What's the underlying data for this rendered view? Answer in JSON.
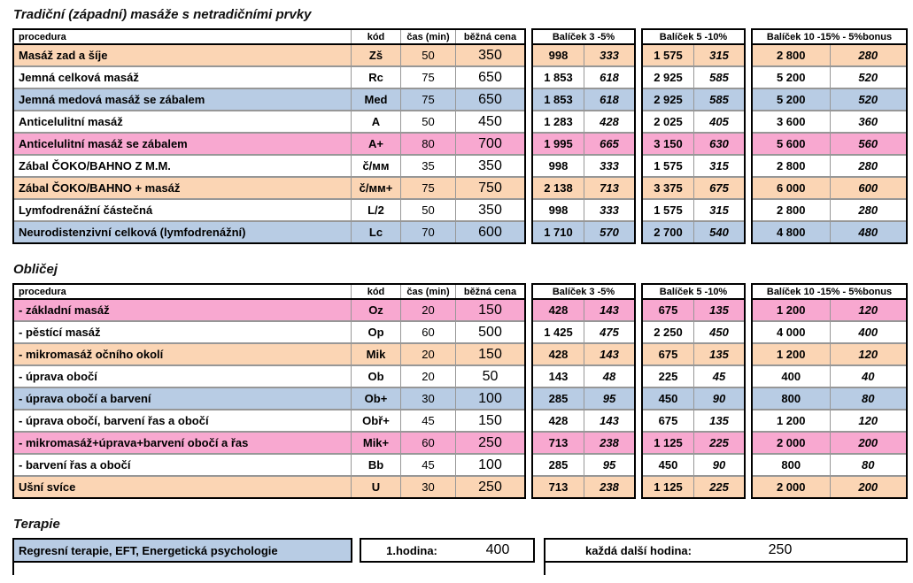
{
  "colors": {
    "row_peach": "#FBD5B4",
    "row_pink": "#F8A8D0",
    "row_blue": "#B8CCE4",
    "row_white": "#FFFFFF",
    "border_outer": "#000000",
    "border_inner": "#979797"
  },
  "columns": {
    "procedura": "procedura",
    "kod": "kód",
    "cas": "čas (min)",
    "cena": "běžná cena",
    "b3": "Balíček 3  -5%",
    "b5": "Balíček 5  -10%",
    "b10": "Balíček 10  -15% - 5%bonus"
  },
  "sections": [
    {
      "title": "Tradiční (západní) masáže s netradičními prvky",
      "rows": [
        {
          "procedura": "Masáž zad a šíje",
          "kod": "Zš",
          "cas": "50",
          "cena": "350",
          "b3": [
            "998",
            "333"
          ],
          "b5": [
            "1 575",
            "315"
          ],
          "b10": [
            "2 800",
            "280"
          ],
          "color": "peach"
        },
        {
          "procedura": "Jemná celková masáž",
          "kod": "Rc",
          "cas": "75",
          "cena": "650",
          "b3": [
            "1 853",
            "618"
          ],
          "b5": [
            "2 925",
            "585"
          ],
          "b10": [
            "5 200",
            "520"
          ],
          "color": "white"
        },
        {
          "procedura": "Jemná medová masáž se zábalem",
          "kod": "Med",
          "cas": "75",
          "cena": "650",
          "b3": [
            "1 853",
            "618"
          ],
          "b5": [
            "2 925",
            "585"
          ],
          "b10": [
            "5 200",
            "520"
          ],
          "color": "blue"
        },
        {
          "procedura": "Anticelulitní masáž",
          "kod": "A",
          "cas": "50",
          "cena": "450",
          "b3": [
            "1 283",
            "428"
          ],
          "b5": [
            "2 025",
            "405"
          ],
          "b10": [
            "3 600",
            "360"
          ],
          "color": "white"
        },
        {
          "procedura": "Anticelulitní masáž se zábalem",
          "kod": "A+",
          "cas": "80",
          "cena": "700",
          "b3": [
            "1 995",
            "665"
          ],
          "b5": [
            "3 150",
            "630"
          ],
          "b10": [
            "5 600",
            "560"
          ],
          "color": "pink"
        },
        {
          "procedura": "Zábal ČOKO/BAHNO Z M.M.",
          "kod": "č/мм",
          "cas": "35",
          "cena": "350",
          "b3": [
            "998",
            "333"
          ],
          "b5": [
            "1 575",
            "315"
          ],
          "b10": [
            "2 800",
            "280"
          ],
          "color": "white"
        },
        {
          "procedura": "Zábal ČOKO/BAHNO + masáž",
          "kod": "č/мм+",
          "cas": "75",
          "cena": "750",
          "b3": [
            "2 138",
            "713"
          ],
          "b5": [
            "3 375",
            "675"
          ],
          "b10": [
            "6 000",
            "600"
          ],
          "color": "peach"
        },
        {
          "procedura": "Lymfodrenážní částečná",
          "kod": "L/2",
          "cas": "50",
          "cena": "350",
          "b3": [
            "998",
            "333"
          ],
          "b5": [
            "1 575",
            "315"
          ],
          "b10": [
            "2 800",
            "280"
          ],
          "color": "white"
        },
        {
          "procedura": "Neurodistenzivní celková (lymfodrenážní)",
          "kod": "Lc",
          "cas": "70",
          "cena": "600",
          "b3": [
            "1 710",
            "570"
          ],
          "b5": [
            "2 700",
            "540"
          ],
          "b10": [
            "4 800",
            "480"
          ],
          "color": "blue"
        }
      ]
    },
    {
      "title": "Obličej",
      "rows": [
        {
          "procedura": "- základní masáž",
          "kod": "Oz",
          "cas": "20",
          "cena": "150",
          "b3": [
            "428",
            "143"
          ],
          "b5": [
            "675",
            "135"
          ],
          "b10": [
            "1 200",
            "120"
          ],
          "color": "pink"
        },
        {
          "procedura": "- pěstící masáž",
          "kod": "Op",
          "cas": "60",
          "cena": "500",
          "b3": [
            "1 425",
            "475"
          ],
          "b5": [
            "2 250",
            "450"
          ],
          "b10": [
            "4 000",
            "400"
          ],
          "color": "white"
        },
        {
          "procedura": "- mikromasáž očního okolí",
          "kod": "Mik",
          "cas": "20",
          "cena": "150",
          "b3": [
            "428",
            "143"
          ],
          "b5": [
            "675",
            "135"
          ],
          "b10": [
            "1 200",
            "120"
          ],
          "color": "peach"
        },
        {
          "procedura": "- úprava obočí",
          "kod": "Ob",
          "cas": "20",
          "cena": "50",
          "b3": [
            "143",
            "48"
          ],
          "b5": [
            "225",
            "45"
          ],
          "b10": [
            "400",
            "40"
          ],
          "color": "white"
        },
        {
          "procedura": "- úprava obočí a barvení",
          "kod": "Ob+",
          "cas": "30",
          "cena": "100",
          "b3": [
            "285",
            "95"
          ],
          "b5": [
            "450",
            "90"
          ],
          "b10": [
            "800",
            "80"
          ],
          "color": "blue"
        },
        {
          "procedura": "- úprava obočí, barvení řas a obočí",
          "kod": "Obř+",
          "cas": "45",
          "cena": "150",
          "b3": [
            "428",
            "143"
          ],
          "b5": [
            "675",
            "135"
          ],
          "b10": [
            "1 200",
            "120"
          ],
          "color": "white"
        },
        {
          "procedura": "- mikromasáž+úprava+barvení obočí a řas",
          "kod": "Mik+",
          "cas": "60",
          "cena": "250",
          "b3": [
            "713",
            "238"
          ],
          "b5": [
            "1 125",
            "225"
          ],
          "b10": [
            "2 000",
            "200"
          ],
          "color": "pink"
        },
        {
          "procedura": "- barvení řas a obočí",
          "kod": "Bb",
          "cas": "45",
          "cena": "100",
          "b3": [
            "285",
            "95"
          ],
          "b5": [
            "450",
            "90"
          ],
          "b10": [
            "800",
            "80"
          ],
          "color": "white"
        },
        {
          "procedura": "Ušní svíce",
          "kod": "U",
          "cas": "30",
          "cena": "250",
          "b3": [
            "713",
            "238"
          ],
          "b5": [
            "1 125",
            "225"
          ],
          "b10": [
            "2 000",
            "200"
          ],
          "color": "peach"
        }
      ]
    }
  ],
  "terapie": {
    "title": "Terapie",
    "row": {
      "label": "Regresní terapie, EFT, Energetická psychologie",
      "first_hour_label": "1.hodina:",
      "first_hour_price": "400",
      "next_hour_label": "každá další hodina:",
      "next_hour_price": "250",
      "color": "blue"
    }
  }
}
